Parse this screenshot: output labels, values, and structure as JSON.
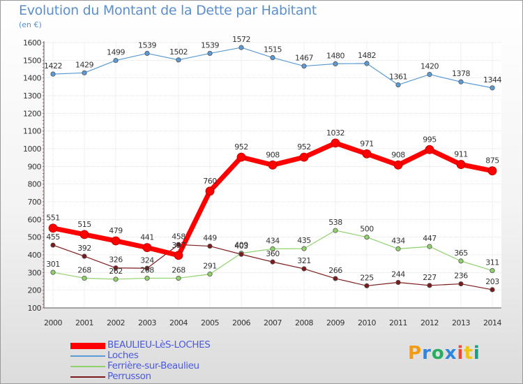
{
  "page": {
    "title": "Evolution du Montant de la Dette par Habitant",
    "unit": "(en €)"
  },
  "brand": {
    "letters": [
      "P",
      "r",
      "o",
      "x",
      "i",
      "t",
      "i"
    ],
    "colors": [
      "#f39c12",
      "#2e86de",
      "#27ae60",
      "#2e86de",
      "#e74c3c",
      "#f1c40f",
      "#16a085"
    ]
  },
  "chart_data": {
    "type": "line",
    "title": "Evolution du Montant de la Dette par Habitant",
    "ylabel": "(en €)",
    "xlabel": "",
    "x": [
      "2000",
      "2001",
      "2002",
      "2003",
      "2004",
      "2005",
      "2006",
      "2007",
      "2008",
      "2009",
      "2010",
      "2011",
      "2012",
      "2013",
      "2014"
    ],
    "ylim": [
      100,
      1600
    ],
    "yticks": [
      100,
      200,
      300,
      400,
      500,
      600,
      700,
      800,
      900,
      1000,
      1100,
      1200,
      1300,
      1400,
      1500,
      1600
    ],
    "grid": true,
    "legend_position": "bottom-left",
    "series": [
      {
        "name": "BEAULIEU-LèS-LOCHES",
        "color": "#ff0000",
        "bold": true,
        "values": [
          551,
          515,
          479,
          441,
          397,
          760,
          952,
          908,
          952,
          1032,
          971,
          908,
          995,
          911,
          875
        ]
      },
      {
        "name": "Loches",
        "color": "#5b9bd5",
        "values": [
          1422,
          1429,
          1499,
          1539,
          1502,
          1539,
          1572,
          1515,
          1467,
          1480,
          1482,
          1361,
          1420,
          1378,
          1344
        ]
      },
      {
        "name": "Ferrière-sur-Beaulieu",
        "color": "#8fd16a",
        "values": [
          301,
          268,
          262,
          268,
          268,
          291,
          409,
          434,
          435,
          538,
          500,
          434,
          447,
          365,
          311
        ]
      },
      {
        "name": "Perrusson",
        "color": "#7b1a1a",
        "values": [
          455,
          392,
          326,
          324,
          458,
          449,
          403,
          360,
          321,
          266,
          225,
          244,
          227,
          236,
          203
        ]
      }
    ]
  }
}
